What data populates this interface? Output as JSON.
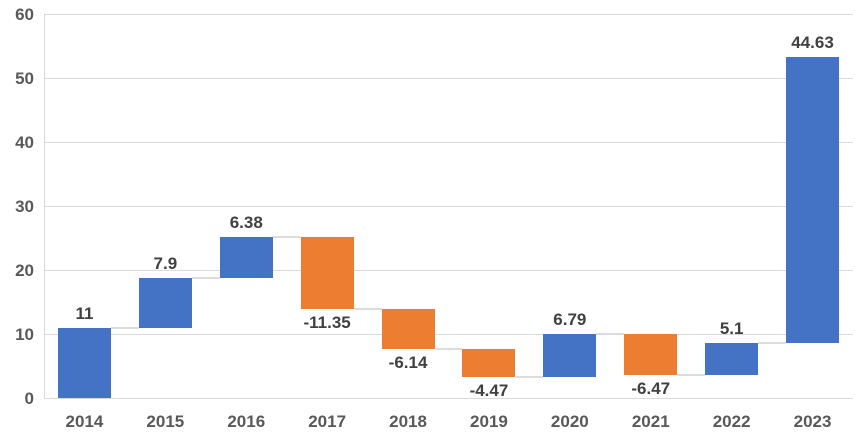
{
  "chart_data": {
    "type": "bar",
    "subtype": "waterfall",
    "categories": [
      "2014",
      "2015",
      "2016",
      "2017",
      "2018",
      "2019",
      "2020",
      "2021",
      "2022",
      "2023"
    ],
    "values": [
      11,
      7.9,
      6.38,
      -11.35,
      -6.14,
      -4.47,
      6.79,
      -6.47,
      5.1,
      44.63
    ],
    "data_labels": [
      "11",
      "7.9",
      "6.38",
      "-11.35",
      "-6.14",
      "-4.47",
      "6.79",
      "-6.47",
      "5.1",
      "44.63"
    ],
    "cumulative_ends": [
      11,
      18.9,
      25.28,
      13.93,
      7.79,
      3.32,
      10.11,
      3.64,
      8.74,
      53.37
    ],
    "y_ticks": [
      "0",
      "10",
      "20",
      "30",
      "40",
      "50",
      "60"
    ],
    "ylim": [
      0,
      60
    ],
    "title": "",
    "xlabel": "",
    "ylabel": "",
    "grid": "horizontal",
    "legend": "none",
    "connector_lines": true,
    "colors": {
      "increase": "#4472C4",
      "decrease": "#ED7D31",
      "gridline": "#D9D9D9",
      "connector": "#DCDCDC",
      "axis_label": "#595959",
      "data_label": "#404040"
    }
  }
}
